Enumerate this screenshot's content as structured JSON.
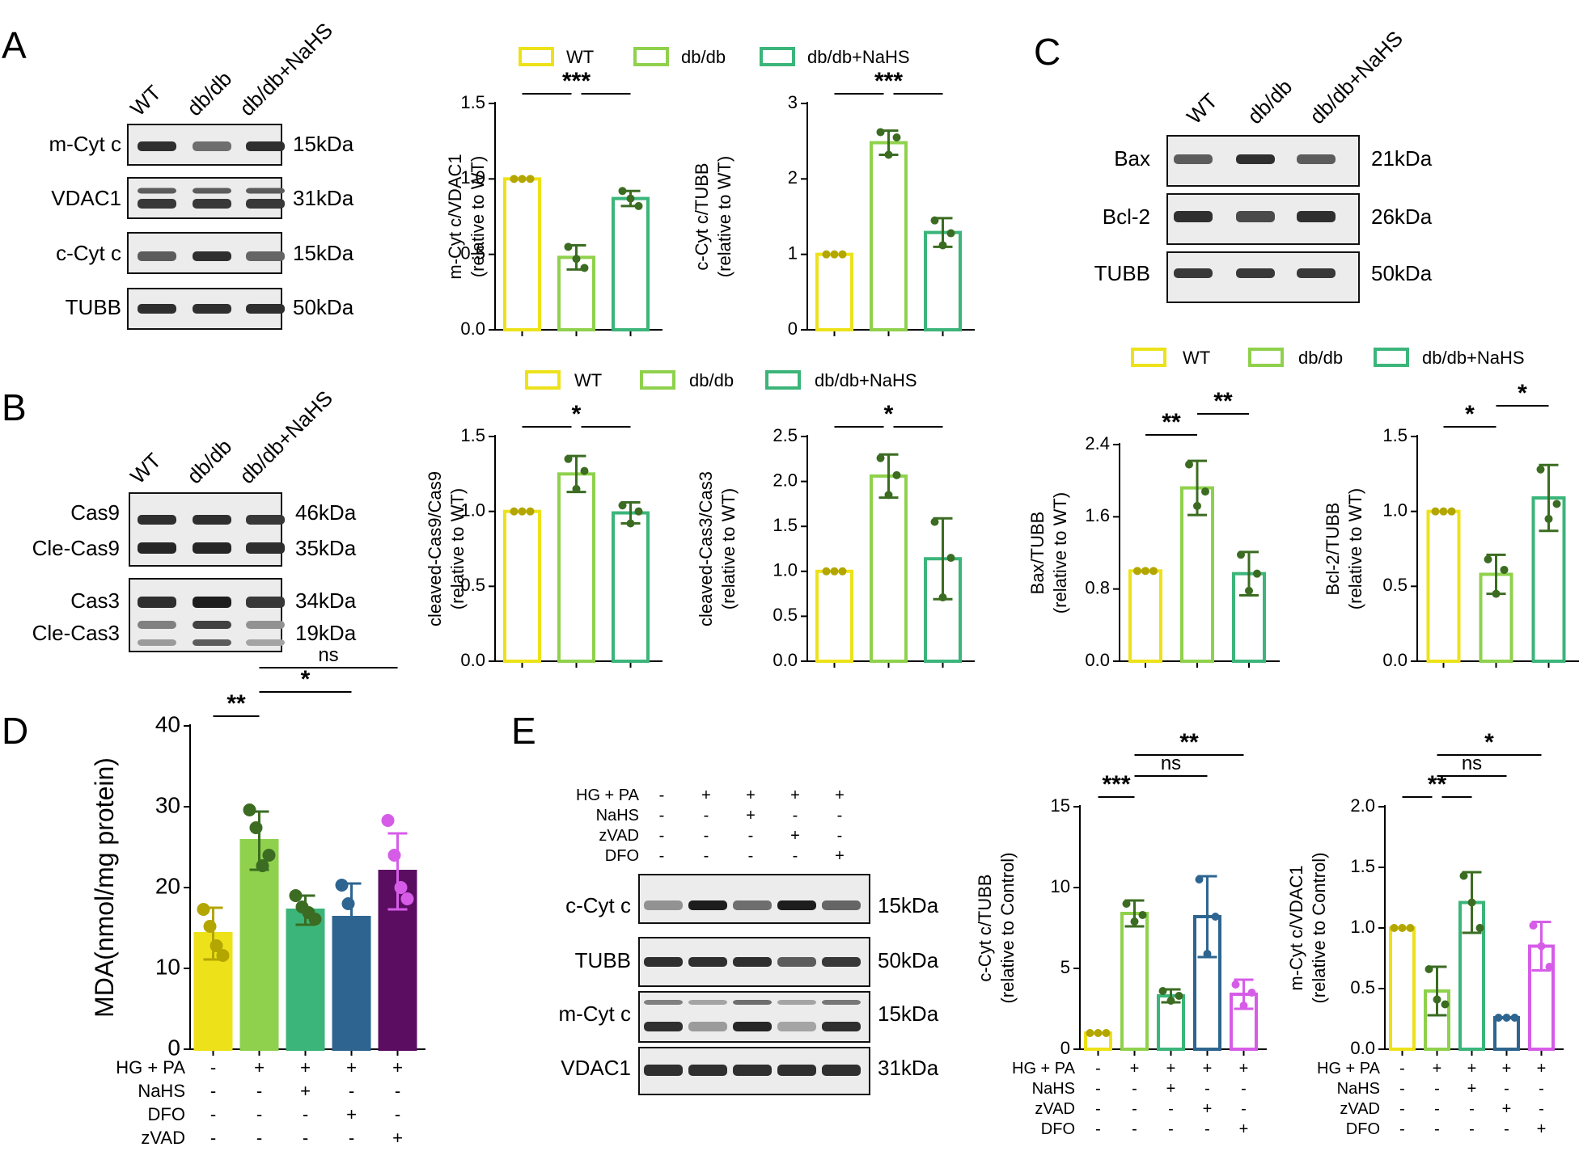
{
  "figure": {
    "panels": {
      "A": "A",
      "B": "B",
      "C": "C",
      "D": "D",
      "E": "E"
    },
    "colors": {
      "wt": "#ede21a",
      "dbdb": "#8fd14c",
      "nahs": "#3bb57a",
      "dfo": "#2e6590",
      "zvad": "#d65ce8",
      "zvad_fill": "#5b0d62",
      "dot_wt": "#b3a600",
      "dot_dbdb": "#3b6c22"
    },
    "legend": {
      "wt": "WT",
      "dbdb": "db/db",
      "nahs": "db/db+NaHS"
    },
    "blots": {
      "A": {
        "lanes": [
          "WT",
          "db/db",
          "db/db+NaHS"
        ],
        "rows": [
          {
            "protein": "m-Cyt c",
            "kda": "15kDa"
          },
          {
            "protein": "VDAC1",
            "kda": "31kDa"
          },
          {
            "protein": "c-Cyt c",
            "kda": "15kDa"
          },
          {
            "protein": "TUBB",
            "kda": "50kDa"
          }
        ]
      },
      "B": {
        "lanes": [
          "WT",
          "db/db",
          "db/db+NaHS"
        ],
        "rows": [
          {
            "protein": "Cas9",
            "kda": "46kDa"
          },
          {
            "protein": "Cle-Cas9",
            "kda": "35kDa"
          },
          {
            "protein": "Cas3",
            "kda": "34kDa"
          },
          {
            "protein": "Cle-Cas3",
            "kda": "19kDa"
          }
        ]
      },
      "C": {
        "lanes": [
          "WT",
          "db/db",
          "db/db+NaHS"
        ],
        "rows": [
          {
            "protein": "Bax",
            "kda": "21kDa"
          },
          {
            "protein": "Bcl-2",
            "kda": "26kDa"
          },
          {
            "protein": "TUBB",
            "kda": "50kDa"
          }
        ]
      },
      "E": {
        "conditions": [
          {
            "label": "HG + PA",
            "signs": [
              "-",
              "+",
              "+",
              "+",
              "+"
            ]
          },
          {
            "label": "NaHS",
            "signs": [
              "-",
              "-",
              "+",
              "-",
              "-"
            ]
          },
          {
            "label": "zVAD",
            "signs": [
              "-",
              "-",
              "-",
              "+",
              "-"
            ]
          },
          {
            "label": "DFO",
            "signs": [
              "-",
              "-",
              "-",
              "-",
              "+"
            ]
          }
        ],
        "rows": [
          {
            "protein": "c-Cyt c",
            "kda": "15kDa"
          },
          {
            "protein": "TUBB",
            "kda": "50kDa"
          },
          {
            "protein": "m-Cyt c",
            "kda": "15kDa"
          },
          {
            "protein": "VDAC1",
            "kda": "31kDa"
          }
        ]
      }
    },
    "d_conditions": [
      {
        "label": "HG + PA",
        "signs": [
          "-",
          "+",
          "+",
          "+",
          "+"
        ]
      },
      {
        "label": "NaHS",
        "signs": [
          "-",
          "-",
          "+",
          "-",
          "-"
        ]
      },
      {
        "label": "DFO",
        "signs": [
          "-",
          "-",
          "-",
          "+",
          "-"
        ]
      },
      {
        "label": "zVAD",
        "signs": [
          "-",
          "-",
          "-",
          "-",
          "+"
        ]
      }
    ]
  },
  "chart_data": [
    {
      "id": "A1",
      "type": "bar",
      "categories": [
        "WT",
        "db/db",
        "db/db+NaHS"
      ],
      "values": [
        1.0,
        0.48,
        0.87
      ],
      "errors": [
        0.0,
        0.08,
        0.05
      ],
      "points": [
        [
          1.0,
          1.0,
          1.0
        ],
        [
          0.55,
          0.47,
          0.41
        ],
        [
          0.92,
          0.87,
          0.82
        ]
      ],
      "ylabel": [
        "m-Cyt c/VDAC1",
        "(relative to WT)"
      ],
      "ylim": [
        0,
        1.5
      ],
      "ticks": [
        0,
        0.5,
        1.0,
        1.5
      ],
      "tick_labels": [
        "0.0",
        "0.5",
        "1.0",
        "1.5"
      ],
      "sig": [
        {
          "label": "***",
          "from": 0,
          "to": 2,
          "mid": 1
        }
      ]
    },
    {
      "id": "A2",
      "type": "bar",
      "categories": [
        "WT",
        "db/db",
        "db/db+NaHS"
      ],
      "values": [
        1.0,
        2.48,
        1.29
      ],
      "errors": [
        0.0,
        0.16,
        0.19
      ],
      "points": [
        [
          1.0,
          1.0,
          1.0
        ],
        [
          2.62,
          2.32,
          2.55
        ],
        [
          1.45,
          1.12,
          1.28
        ]
      ],
      "ylabel": [
        "c-Cyt c/TUBB",
        "(relative to WT)"
      ],
      "ylim": [
        0,
        3
      ],
      "ticks": [
        0,
        1,
        2,
        3
      ],
      "tick_labels": [
        "0",
        "1",
        "2",
        "3"
      ],
      "sig": [
        {
          "label": "***",
          "from": 0,
          "to": 2,
          "mid": 1
        }
      ]
    },
    {
      "id": "B1",
      "type": "bar",
      "categories": [
        "WT",
        "db/db",
        "db/db+NaHS"
      ],
      "values": [
        1.0,
        1.25,
        0.99
      ],
      "errors": [
        0.0,
        0.12,
        0.07
      ],
      "points": [
        [
          1.0,
          1.0,
          1.0
        ],
        [
          1.35,
          1.15,
          1.27
        ],
        [
          1.04,
          0.92,
          1.0
        ]
      ],
      "ylabel": [
        "cleaved-Cas9/Cas9",
        "(relative to WT)"
      ],
      "ylim": [
        0,
        1.5
      ],
      "ticks": [
        0,
        0.5,
        1.0,
        1.5
      ],
      "tick_labels": [
        "0.0",
        "0.5",
        "1.0",
        "1.5"
      ],
      "sig": [
        {
          "label": "*",
          "from": 0,
          "to": 2,
          "mid": 1
        }
      ]
    },
    {
      "id": "B2",
      "type": "bar",
      "categories": [
        "WT",
        "db/db",
        "db/db+NaHS"
      ],
      "values": [
        1.0,
        2.06,
        1.14
      ],
      "errors": [
        0.0,
        0.24,
        0.45
      ],
      "points": [
        [
          1.0,
          1.0,
          1.0
        ],
        [
          2.26,
          1.85,
          2.07
        ],
        [
          1.55,
          0.71,
          1.15
        ]
      ],
      "ylabel": [
        "cleaved-Cas3/Cas3",
        "(relative to WT)"
      ],
      "ylim": [
        0,
        2.5
      ],
      "ticks": [
        0,
        0.5,
        1.0,
        1.5,
        2.0,
        2.5
      ],
      "tick_labels": [
        "0.0",
        "0.5",
        "1.0",
        "1.5",
        "2.0",
        "2.5"
      ],
      "sig": [
        {
          "label": "*",
          "from": 0,
          "to": 2,
          "mid": 1
        }
      ]
    },
    {
      "id": "C1",
      "type": "bar",
      "categories": [
        "WT",
        "db/db",
        "db/db+NaHS"
      ],
      "values": [
        1.0,
        1.92,
        0.97
      ],
      "errors": [
        0.0,
        0.3,
        0.24
      ],
      "points": [
        [
          1.0,
          1.0,
          1.0
        ],
        [
          2.18,
          1.72,
          1.88
        ],
        [
          1.18,
          0.78,
          0.97
        ]
      ],
      "ylabel": [
        "Bax/TUBB",
        "(relative to WT)"
      ],
      "ylim": [
        0,
        2.4
      ],
      "ticks": [
        0,
        0.8,
        1.6,
        2.4
      ],
      "tick_labels": [
        "0.0",
        "0.8",
        "1.6",
        "2.4"
      ],
      "sig": [
        {
          "label": "**",
          "from": 0,
          "to": 1
        },
        {
          "label": "**",
          "from": 1,
          "to": 2
        }
      ]
    },
    {
      "id": "C2",
      "type": "bar",
      "categories": [
        "WT",
        "db/db",
        "db/db+NaHS"
      ],
      "values": [
        1.0,
        0.58,
        1.09
      ],
      "errors": [
        0.0,
        0.13,
        0.22
      ],
      "points": [
        [
          1.0,
          1.0,
          1.0
        ],
        [
          0.68,
          0.45,
          0.61
        ],
        [
          1.28,
          0.95,
          1.05
        ]
      ],
      "ylabel": [
        "Bcl-2/TUBB",
        "(relative to WT)"
      ],
      "ylim": [
        0,
        1.5
      ],
      "ticks": [
        0,
        0.5,
        1.0,
        1.5
      ],
      "tick_labels": [
        "0.0",
        "0.5",
        "1.0",
        "1.5"
      ],
      "sig": [
        {
          "label": "*",
          "from": 0,
          "to": 1
        },
        {
          "label": "*",
          "from": 1,
          "to": 2
        }
      ]
    },
    {
      "id": "D",
      "type": "bar",
      "categories": [
        "Control",
        "HG + PA",
        "HG + PA + NaHS",
        "HG + PA + DFO",
        "HG + PA + zVAD"
      ],
      "values": [
        14.3,
        25.8,
        17.2,
        16.3,
        22.0
      ],
      "errors": [
        3.2,
        3.6,
        1.8,
        4.2,
        4.7
      ],
      "points": [
        [
          17.3,
          15.2,
          12.8,
          11.6
        ],
        [
          29.6,
          27.4,
          22.7,
          24.0
        ],
        [
          19.0,
          17.6,
          16.9,
          16.1
        ],
        [
          20.3,
          18.0,
          14.2,
          13.5
        ],
        [
          28.3,
          24.0,
          20.0,
          18.6
        ]
      ],
      "ylabel": [
        "MDA(nmol/mg protein)"
      ],
      "ylim": [
        0,
        40
      ],
      "ticks": [
        0,
        10,
        20,
        30,
        40
      ],
      "tick_labels": [
        "0",
        "10",
        "20",
        "30",
        "40"
      ],
      "sig": [
        {
          "label": "**",
          "from": 0,
          "to": 1
        },
        {
          "label": "*",
          "from": 1,
          "to": 3
        },
        {
          "label": "ns",
          "from": 1,
          "to": 4
        }
      ]
    },
    {
      "id": "E1",
      "type": "bar",
      "categories": [
        "Control",
        "HG + PA",
        "HG + PA + NaHS",
        "HG + PA + zVAD",
        "HG + PA + DFO"
      ],
      "values": [
        1.0,
        8.4,
        3.3,
        8.2,
        3.4
      ],
      "errors": [
        0.0,
        0.8,
        0.4,
        2.5,
        0.9
      ],
      "points": [
        [
          1.0,
          1.0,
          1.0
        ],
        [
          9.0,
          7.9,
          8.3
        ],
        [
          3.6,
          3.0,
          3.3
        ],
        [
          10.5,
          5.9,
          8.2
        ],
        [
          4.0,
          2.7,
          3.5
        ]
      ],
      "ylabel": [
        "c-Cyt c/TUBB",
        "(relative to Control)"
      ],
      "ylim": [
        0,
        15
      ],
      "ticks": [
        0,
        5,
        10,
        15
      ],
      "tick_labels": [
        "0",
        "5",
        "10",
        "15"
      ],
      "sig": [
        {
          "label": "***",
          "from": 0,
          "to": 1
        },
        {
          "label": "ns",
          "from": 1,
          "to": 3
        },
        {
          "label": "**",
          "from": 1,
          "to": 4
        }
      ]
    },
    {
      "id": "E2",
      "type": "bar",
      "categories": [
        "Control",
        "HG + PA",
        "HG + PA + NaHS",
        "HG + PA + zVAD",
        "HG + PA + DFO"
      ],
      "values": [
        1.0,
        0.48,
        1.21,
        0.26,
        0.85
      ],
      "errors": [
        0.0,
        0.2,
        0.25,
        0.0,
        0.2
      ],
      "points": [
        [
          1.0,
          1.0,
          1.0
        ],
        [
          0.66,
          0.41,
          0.37
        ],
        [
          1.43,
          1.21,
          1.0
        ],
        [
          0.26,
          0.26,
          0.26
        ],
        [
          1.02,
          0.85,
          0.68
        ]
      ],
      "ylabel": [
        "m-Cyt c/VDAC1",
        "(relative to Control)"
      ],
      "ylim": [
        0,
        2.0
      ],
      "ticks": [
        0,
        0.5,
        1.0,
        1.5,
        2.0
      ],
      "tick_labels": [
        "0.0",
        "0.5",
        "1.0",
        "1.5",
        "2.0"
      ],
      "sig": [
        {
          "label": "**",
          "from": 0,
          "to": 2,
          "mid": 1
        },
        {
          "label": "ns",
          "from": 1,
          "to": 3
        },
        {
          "label": "*",
          "from": 1,
          "to": 4
        }
      ]
    }
  ]
}
